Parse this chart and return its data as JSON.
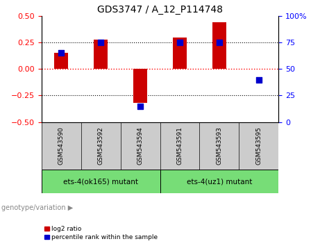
{
  "title": "GDS3747 / A_12_P114748",
  "samples": [
    "GSM543590",
    "GSM543592",
    "GSM543594",
    "GSM543591",
    "GSM543593",
    "GSM543595"
  ],
  "log2_ratio": [
    0.155,
    0.278,
    -0.322,
    0.3,
    0.44,
    0.0
  ],
  "percentile_rank": [
    65,
    75,
    15,
    75,
    75,
    40
  ],
  "ylim_left": [
    -0.5,
    0.5
  ],
  "ylim_right": [
    0,
    100
  ],
  "yticks_left": [
    -0.5,
    -0.25,
    0,
    0.25,
    0.5
  ],
  "yticks_right": [
    0,
    25,
    50,
    75,
    100
  ],
  "hlines_dotted": [
    -0.25,
    0.25
  ],
  "bar_color": "#cc0000",
  "dot_color": "#0000cc",
  "group1_label": "ets-4(ok165) mutant",
  "group2_label": "ets-4(uz1) mutant",
  "group1_indices": [
    0,
    1,
    2
  ],
  "group2_indices": [
    3,
    4,
    5
  ],
  "group_bg_color": "#77dd77",
  "genotype_label": "genotype/variation",
  "legend_log2": "log2 ratio",
  "legend_pct": "percentile rank within the sample",
  "sample_box_color": "#cccccc",
  "bar_width": 0.35,
  "dot_size": 40,
  "sample_font_size": 6.5,
  "group_font_size": 7.5,
  "title_fontsize": 10,
  "axis_fontsize": 8
}
